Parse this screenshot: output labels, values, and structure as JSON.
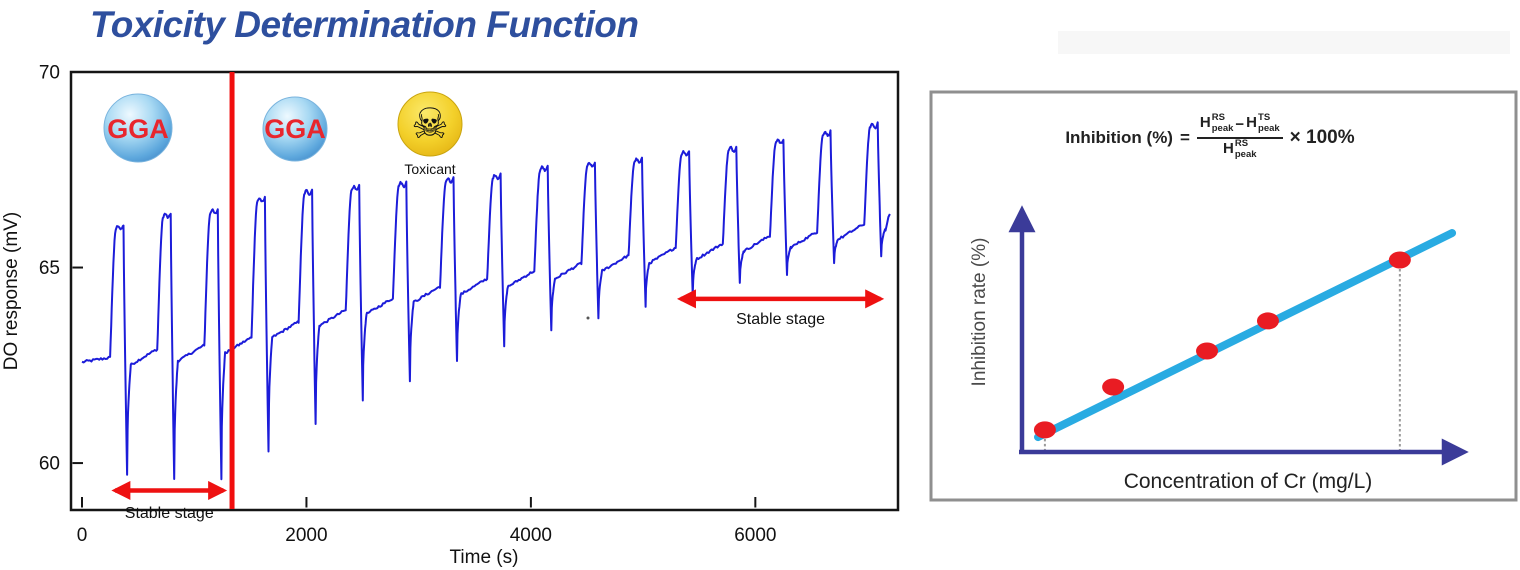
{
  "title": "Toxicity Determination Function",
  "colors": {
    "title": "#2E4F9E",
    "trace": "#1C1CD9",
    "accent_red": "#EE1111",
    "axis_navy": "#3B3B99",
    "fit_cyan": "#29ABE2",
    "point_red": "#E91C23",
    "panel_border": "#8F8F8F",
    "toxicant_yellow": "#F0CC1E"
  },
  "chart_data": [
    {
      "id": "do-response",
      "type": "line",
      "xlabel": "Time (s)",
      "ylabel": "DO response (mV)",
      "xlim": [
        0,
        7200
      ],
      "ylim": [
        58.8,
        70
      ],
      "x_ticks": [
        0,
        2000,
        4000,
        6000
      ],
      "y_ticks": [
        70,
        65,
        60
      ],
      "grid": false,
      "series": [
        {
          "name": "DO response trace",
          "color": "#1C1CD9"
        }
      ],
      "cycle_period_s": 420,
      "first_rise_s": 250,
      "cycles": [
        {
          "base": 62.7,
          "peak": 66.0,
          "min": 59.7
        },
        {
          "base": 62.9,
          "peak": 66.3,
          "min": 59.6
        },
        {
          "base": 63.0,
          "peak": 66.4,
          "min": 59.6
        },
        {
          "base": 63.2,
          "peak": 66.7,
          "min": 60.3
        },
        {
          "base": 63.6,
          "peak": 66.9,
          "min": 61.0
        },
        {
          "base": 63.9,
          "peak": 67.0,
          "min": 61.6
        },
        {
          "base": 64.2,
          "peak": 67.1,
          "min": 62.1
        },
        {
          "base": 64.5,
          "peak": 67.2,
          "min": 62.6
        },
        {
          "base": 64.7,
          "peak": 67.3,
          "min": 63.0
        },
        {
          "base": 64.9,
          "peak": 67.5,
          "min": 63.4
        },
        {
          "base": 65.1,
          "peak": 67.6,
          "min": 63.7
        },
        {
          "base": 65.3,
          "peak": 67.7,
          "min": 64.0
        },
        {
          "base": 65.5,
          "peak": 67.9,
          "min": 64.3
        },
        {
          "base": 65.6,
          "peak": 68.0,
          "min": 64.6
        },
        {
          "base": 65.8,
          "peak": 68.2,
          "min": 64.8
        },
        {
          "base": 65.9,
          "peak": 68.4,
          "min": 65.1
        },
        {
          "base": 66.1,
          "peak": 68.6,
          "min": 65.3
        }
      ],
      "annotations": {
        "toxicant_line_s": 1337,
        "stable_stage_1": {
          "label": "Stable stage",
          "t1": 260,
          "t2": 1295,
          "mv": 59.3,
          "label_mv": 58.6
        },
        "stable_stage_2": {
          "label": "Stable stage",
          "t1": 5300,
          "t2": 7150,
          "mv": 64.2,
          "label_mv": 63.55
        }
      },
      "markers": {
        "gga1": {
          "label": "GGA"
        },
        "gga2": {
          "label": "GGA"
        },
        "toxicant": {
          "label": "Toxicant",
          "glyph": "☠",
          "icon": "skull-crossbones"
        }
      }
    },
    {
      "id": "inhibition-calibration",
      "type": "scatter",
      "xlabel": "Concentration of Cr (mg/L)",
      "ylabel": "Inhibition rate (%)",
      "axis_style": "arrow axes, no ticks",
      "points": [
        {
          "x": 0.05,
          "y": 0.086
        },
        {
          "x": 0.199,
          "y": 0.253
        },
        {
          "x": 0.404,
          "y": 0.393
        },
        {
          "x": 0.537,
          "y": 0.51
        },
        {
          "x": 0.825,
          "y": 0.747
        }
      ],
      "fit_line": {
        "x1": 0.035,
        "y1": 0.058,
        "x2": 0.939,
        "y2": 0.852
      },
      "droplines": [
        0,
        4
      ]
    }
  ],
  "formula": {
    "lhs": "Inhibition (%)",
    "eq": "=",
    "num1": {
      "base": "H",
      "sup": "RS",
      "sub": "peak"
    },
    "minus": "−",
    "num2": {
      "base": "H",
      "sup": "TS",
      "sub": "peak"
    },
    "den": {
      "base": "H",
      "sup": "RS",
      "sub": "peak"
    },
    "suffix": "× 100%"
  }
}
